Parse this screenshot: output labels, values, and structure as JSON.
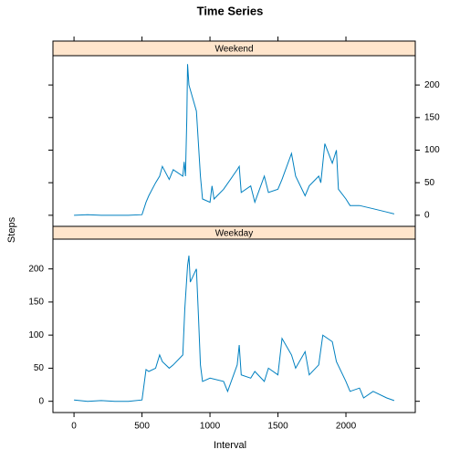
{
  "chart_data": {
    "type": "line",
    "title": "Time Series",
    "xlabel": "Interval",
    "ylabel": "Steps",
    "xlim": [
      -155,
      2510
    ],
    "xticks": [
      0,
      500,
      1000,
      1500,
      2000
    ],
    "ylim": [
      -17,
      245
    ],
    "yticks": [
      0,
      50,
      100,
      150,
      200
    ],
    "panels": [
      {
        "name": "Weekend",
        "color": "#0080c0",
        "x": [
          0,
          100,
          200,
          300,
          400,
          500,
          530,
          550,
          600,
          630,
          650,
          700,
          730,
          800,
          810,
          820,
          830,
          835,
          845,
          900,
          915,
          930,
          945,
          1000,
          1015,
          1030,
          1100,
          1200,
          1215,
          1230,
          1300,
          1330,
          1400,
          1430,
          1500,
          1530,
          1600,
          1630,
          1700,
          1730,
          1800,
          1815,
          1830,
          1845,
          1900,
          1930,
          1945,
          2000,
          2030,
          2100,
          2200,
          2300,
          2355
        ],
        "values": [
          0,
          1,
          0,
          0,
          0,
          1,
          20,
          30,
          50,
          60,
          75,
          55,
          70,
          60,
          82,
          60,
          150,
          232,
          200,
          160,
          110,
          60,
          25,
          20,
          45,
          25,
          40,
          70,
          75,
          35,
          45,
          20,
          60,
          35,
          40,
          55,
          95,
          60,
          30,
          45,
          60,
          50,
          80,
          110,
          80,
          100,
          40,
          25,
          15,
          15,
          10,
          5,
          2
        ]
      },
      {
        "name": "Weekday",
        "color": "#0080c0",
        "x": [
          0,
          100,
          200,
          300,
          400,
          500,
          530,
          550,
          600,
          630,
          650,
          700,
          730,
          800,
          815,
          835,
          845,
          855,
          900,
          915,
          930,
          945,
          1000,
          1100,
          1130,
          1200,
          1215,
          1230,
          1300,
          1330,
          1400,
          1430,
          1500,
          1530,
          1600,
          1630,
          1700,
          1730,
          1800,
          1830,
          1900,
          1930,
          2000,
          2030,
          2100,
          2130,
          2200,
          2300,
          2355
        ],
        "values": [
          2,
          0,
          1,
          0,
          0,
          2,
          48,
          45,
          50,
          70,
          60,
          50,
          55,
          70,
          140,
          205,
          220,
          180,
          200,
          130,
          55,
          30,
          35,
          30,
          15,
          55,
          85,
          40,
          35,
          45,
          30,
          50,
          40,
          95,
          70,
          50,
          75,
          40,
          55,
          100,
          90,
          60,
          30,
          15,
          20,
          5,
          15,
          5,
          1
        ]
      }
    ]
  }
}
